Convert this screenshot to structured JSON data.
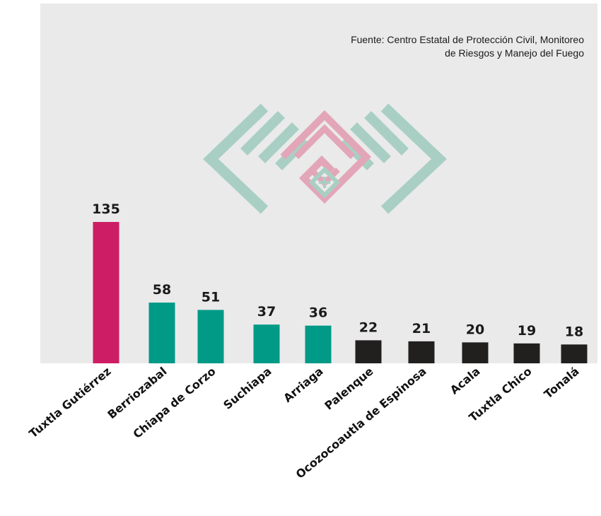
{
  "source": {
    "line1": "Fuente: Centro Estatal de Protección Civil, Monitoreo",
    "line2": "de Riesgos y Manejo del Fuego"
  },
  "colors": {
    "panel": "#eaeaea",
    "highlight": "#cd1e65",
    "teal": "#009a87",
    "dark": "#221f1f",
    "emblem_green": "#a9cfc4",
    "emblem_pink": "#e2a6b8"
  },
  "chart_data": {
    "type": "bar",
    "categories": [
      "Tuxtla Gutiérrez",
      "Berriozabal",
      "Chiapa de Corzo",
      "Suchiapa",
      "Arriaga",
      "Palenque",
      "Ocozocoautla de Espinosa",
      "Acala",
      "Tuxtla Chico",
      "Tonalá"
    ],
    "values": [
      135,
      58,
      51,
      37,
      36,
      22,
      21,
      20,
      19,
      18
    ],
    "bar_colors": [
      "#cd1e65",
      "#009a87",
      "#009a87",
      "#009a87",
      "#009a87",
      "#221f1f",
      "#221f1f",
      "#221f1f",
      "#221f1f",
      "#221f1f"
    ],
    "title": "",
    "xlabel": "",
    "ylabel": "",
    "ylim": [
      0,
      135
    ],
    "grid": false,
    "legend": "none"
  }
}
